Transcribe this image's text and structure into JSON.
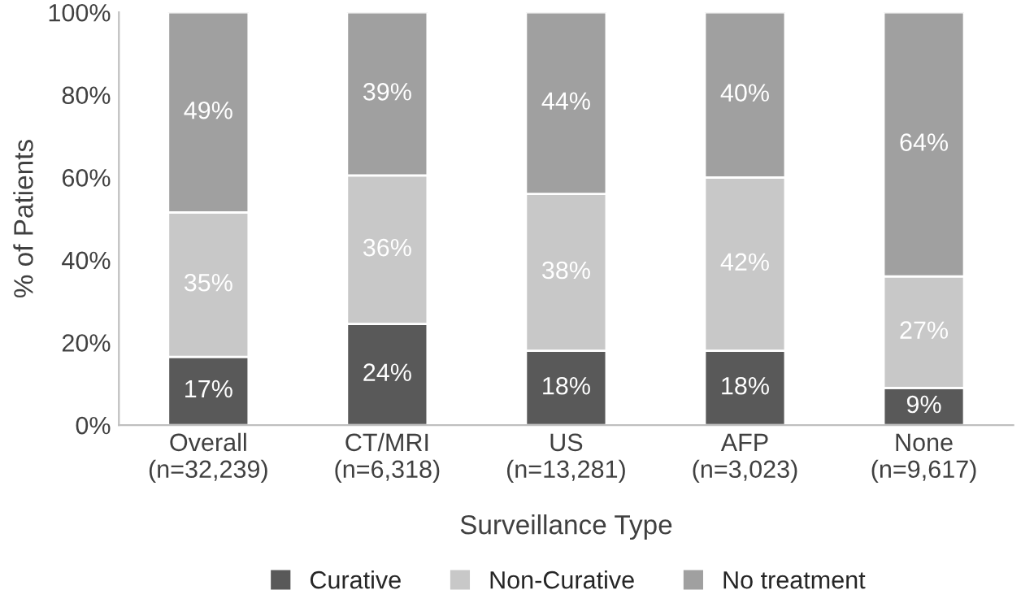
{
  "chart_data": {
    "type": "bar",
    "stacked": true,
    "xlabel": "Surveillance Type",
    "ylabel": "% of Patients",
    "categories": [
      "Overall\n(n=32,239)",
      "CT/MRI\n(n=6,318)",
      "US\n(n=13,281)",
      "AFP\n(n=3,023)",
      "None\n(n=9,617)"
    ],
    "series": [
      {
        "name": "Curative",
        "color": "#595959",
        "values": [
          16.5,
          24.5,
          18,
          18,
          9
        ],
        "value_labels": [
          "17%",
          "24%",
          "18%",
          "18%",
          "9%"
        ]
      },
      {
        "name": "Non-Curative",
        "color": "#c8c8c8",
        "values": [
          35,
          36,
          38,
          42,
          27
        ],
        "value_labels": [
          "35%",
          "36%",
          "38%",
          "42%",
          "27%"
        ]
      },
      {
        "name": "No treatment",
        "color": "#a0a0a0",
        "values": [
          48.5,
          39.5,
          44,
          40,
          64
        ],
        "value_labels": [
          "49%",
          "39%",
          "44%",
          "40%",
          "64%"
        ]
      }
    ],
    "ylim": [
      0,
      100
    ],
    "yticks": [
      {
        "value": 0,
        "label": "0%"
      },
      {
        "value": 20,
        "label": "20%"
      },
      {
        "value": 40,
        "label": "40%"
      },
      {
        "value": 60,
        "label": "60%"
      },
      {
        "value": 80,
        "label": "80%"
      },
      {
        "value": 100,
        "label": "100%"
      }
    ],
    "grid": false,
    "legend": "bottom"
  }
}
